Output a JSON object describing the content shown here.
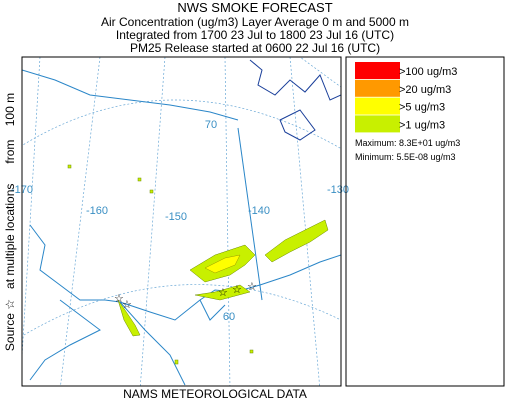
{
  "header": {
    "title": "NWS SMOKE FORECAST",
    "lines": [
      "Air Concentration (ug/m3) Layer Average    0 m and  5000 m",
      "Integrated from 1700 23 Jul to 1800 23 Jul 16 (UTC)",
      "PM25 Release started at 0600 22 Jul 16 (UTC)"
    ]
  },
  "side_text": "Source ☆   at multiple locations      from    100 m",
  "footer": "NAMS METEOROLOGICAL DATA",
  "legend": {
    "entries": [
      {
        "label": ">100 ug/m3",
        "color": "#ff0000"
      },
      {
        "label": ">20 ug/m3",
        "color": "#ff9900"
      },
      {
        "label": ">5 ug/m3",
        "color": "#ffff00"
      },
      {
        "label": ">1 ug/m3",
        "color": "#c8f000"
      }
    ],
    "maximum": "Maximum: 8.3E+01 ug/m3",
    "minimum": "Minimum: 5.5E-08 ug/m3"
  },
  "map_labels": [
    "70",
    "-170",
    "-160",
    "-150",
    "-140",
    "-130",
    "60"
  ]
}
